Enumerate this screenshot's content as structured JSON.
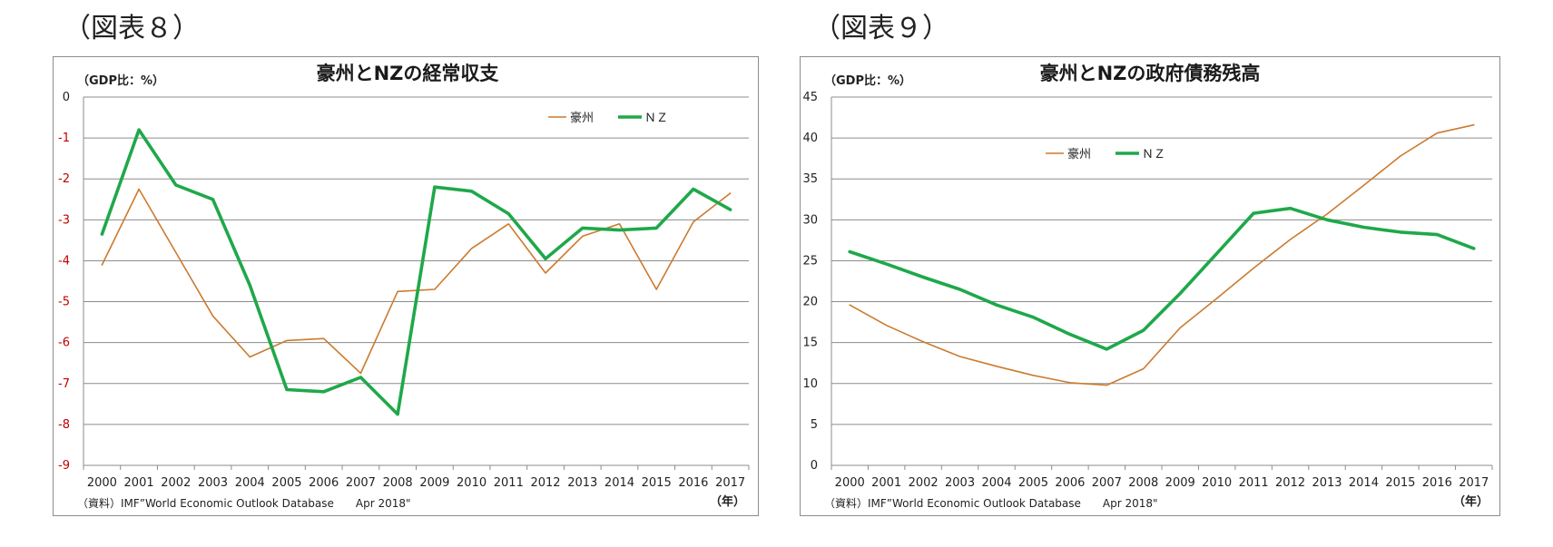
{
  "figures": [
    {
      "label": "（図表８）",
      "unit": "（GDP比：%）",
      "source": "（資料）IMF”World Economic Outlook Database　　Apr 2018\"",
      "year_label": "（年）"
    },
    {
      "label": "（図表９）",
      "unit": "（GDP比：%）",
      "source": "（資料）IMF”World Economic Outlook Database　　Apr 2018\"",
      "year_label": "（年）"
    }
  ],
  "colors": {
    "australia": "#cc7a2e",
    "nz": "#1fa84a",
    "negative_tick": "#c00000"
  },
  "chart_data": [
    {
      "type": "line",
      "title": "豪州とNZの経常収支",
      "xlabel": "（年）",
      "ylabel": "（GDP比：%）",
      "categories": [
        "2000",
        "2001",
        "2002",
        "2003",
        "2004",
        "2005",
        "2006",
        "2007",
        "2008",
        "2009",
        "2010",
        "2011",
        "2012",
        "2013",
        "2014",
        "2015",
        "2016",
        "2017"
      ],
      "ylim": [
        -9,
        0
      ],
      "yticks": [
        0,
        -1,
        -2,
        -3,
        -4,
        -5,
        -6,
        -7,
        -8,
        -9
      ],
      "grid": true,
      "legend": "top-right",
      "series": [
        {
          "name": "豪州",
          "values": [
            -4.1,
            -2.25,
            -3.8,
            -5.35,
            -6.35,
            -5.95,
            -5.9,
            -6.75,
            -4.75,
            -4.7,
            -3.7,
            -3.1,
            -4.3,
            -3.4,
            -3.1,
            -4.7,
            -3.05,
            -2.35
          ]
        },
        {
          "name": "ＮＺ",
          "values": [
            -3.35,
            -0.8,
            -2.15,
            -2.5,
            -4.6,
            -7.15,
            -7.2,
            -6.85,
            -7.75,
            -2.2,
            -2.3,
            -2.85,
            -3.95,
            -3.2,
            -3.25,
            -3.2,
            -2.25,
            -2.75
          ]
        }
      ]
    },
    {
      "type": "line",
      "title": "豪州とNZの政府債務残高",
      "xlabel": "（年）",
      "ylabel": "（GDP比：%）",
      "categories": [
        "2000",
        "2001",
        "2002",
        "2003",
        "2004",
        "2005",
        "2006",
        "2007",
        "2008",
        "2009",
        "2010",
        "2011",
        "2012",
        "2013",
        "2014",
        "2015",
        "2016",
        "2017"
      ],
      "ylim": [
        0,
        45
      ],
      "yticks": [
        0,
        5,
        10,
        15,
        20,
        25,
        30,
        35,
        40,
        45
      ],
      "grid": true,
      "legend": "top-center",
      "series": [
        {
          "name": "豪州",
          "values": [
            19.6,
            17.1,
            15.1,
            13.3,
            12.1,
            11.0,
            10.1,
            9.8,
            11.8,
            16.8,
            20.4,
            24.1,
            27.6,
            30.7,
            34.2,
            37.8,
            40.6,
            41.6
          ]
        },
        {
          "name": "ＮＺ",
          "values": [
            26.1,
            24.6,
            23.0,
            21.5,
            19.6,
            18.1,
            16.0,
            14.2,
            16.5,
            21.0,
            25.9,
            30.8,
            31.4,
            30.0,
            29.1,
            28.5,
            28.2,
            26.5
          ]
        }
      ]
    }
  ]
}
